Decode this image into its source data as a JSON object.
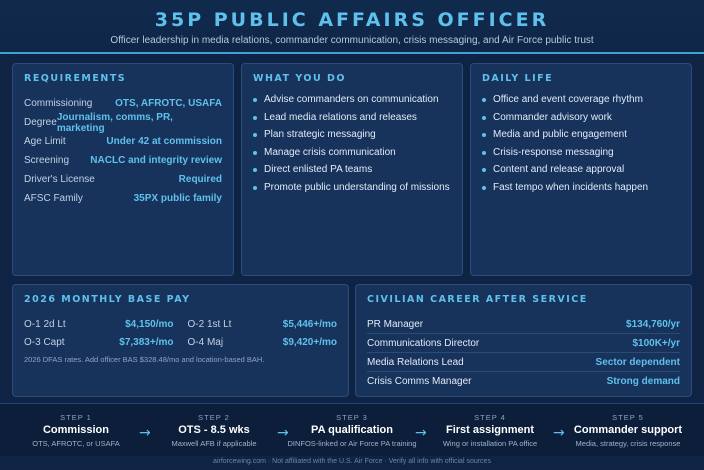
{
  "header": {
    "title": "35P PUBLIC AFFAIRS OFFICER",
    "subtitle": "Officer leadership in media relations, commander communication, crisis messaging, and Air Force public trust"
  },
  "requirements": {
    "title": "REQUIREMENTS",
    "rows": [
      {
        "label": "Commissioning",
        "value": "OTS, AFROTC, USAFA"
      },
      {
        "label": "Degree",
        "value": "Journalism, comms, PR, marketing"
      },
      {
        "label": "Age Limit",
        "value": "Under 42 at commission"
      },
      {
        "label": "Screening",
        "value": "NACLC and integrity review"
      },
      {
        "label": "Driver's License",
        "value": "Required"
      },
      {
        "label": "AFSC Family",
        "value": "35PX public family"
      }
    ]
  },
  "what_you_do": {
    "title": "WHAT YOU DO",
    "items": [
      "Advise commanders on communication",
      "Lead media relations and releases",
      "Plan strategic messaging",
      "Manage crisis communication",
      "Direct enlisted PA teams",
      "Promote public understanding of missions"
    ]
  },
  "daily_life": {
    "title": "DAILY LIFE",
    "items": [
      "Office and event coverage rhythm",
      "Commander advisory work",
      "Media and public engagement",
      "Crisis-response messaging",
      "Content and release approval",
      "Fast tempo when incidents happen"
    ]
  },
  "pay": {
    "title": "2026 MONTHLY BASE PAY",
    "rows": [
      {
        "label": "O-1 2d Lt",
        "value": "$4,150/mo"
      },
      {
        "label": "O-2 1st Lt",
        "value": "$5,446+/mo"
      },
      {
        "label": "O-3 Capt",
        "value": "$7,383+/mo"
      },
      {
        "label": "O-4 Maj",
        "value": "$9,420+/mo"
      }
    ],
    "note": "2026 DFAS rates. Add officer BAS $328.48/mo and location-based BAH."
  },
  "civilian": {
    "title": "CIVILIAN CAREER AFTER SERVICE",
    "rows": [
      {
        "label": "PR Manager",
        "value": "$134,760/yr"
      },
      {
        "label": "Communications Director",
        "value": "$100K+/yr"
      },
      {
        "label": "Media Relations Lead",
        "value": "Sector dependent"
      },
      {
        "label": "Crisis Comms Manager",
        "value": "Strong demand"
      }
    ]
  },
  "steps": [
    {
      "label": "STEP 1",
      "name": "Commission",
      "sub": "OTS, AFROTC, or USAFA"
    },
    {
      "label": "STEP 2",
      "name": "OTS - 8.5 wks",
      "sub": "Maxwell AFB if applicable"
    },
    {
      "label": "STEP 3",
      "name": "PA qualification",
      "sub": "DINFOS-linked or Air Force PA training"
    },
    {
      "label": "STEP 4",
      "name": "First assignment",
      "sub": "Wing or installation PA office"
    },
    {
      "label": "STEP 5",
      "name": "Commander support",
      "sub": "Media, strategy, crisis response"
    }
  ],
  "arrow_glyph": "→",
  "footer": "airforcewing.com · Not affiliated with the U.S. Air Force · Verify all info with official sources",
  "colors": {
    "background": "#0f2444",
    "card": "#17335c",
    "accent": "#5ec1ec"
  }
}
